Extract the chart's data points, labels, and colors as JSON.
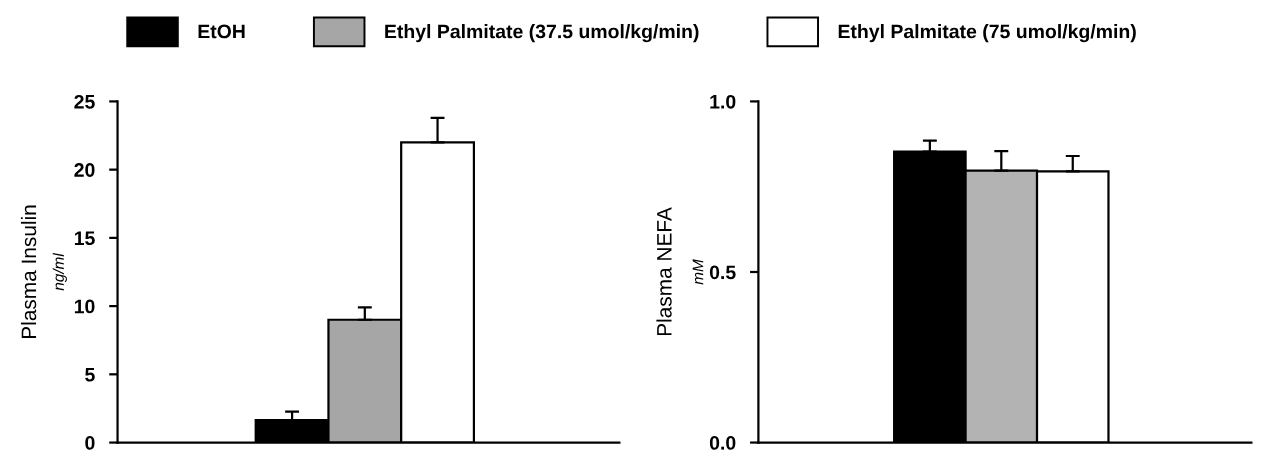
{
  "chart_data": [
    {
      "type": "bar",
      "categories": [
        null
      ],
      "ylabel": "Plasma Insulin\nng/ml",
      "ylim": [
        0,
        25
      ],
      "yticks": [
        0,
        5,
        10,
        15,
        20,
        25
      ],
      "legend": "top",
      "grid": false,
      "series": [
        {
          "name": "EtOH",
          "color": "#000000",
          "values": [
            1.64
          ],
          "errors": [
            [
              1.64,
              2.27
            ]
          ]
        },
        {
          "name": "Ethyl Palmitate (37.5 umol/kg/min)",
          "color": "#a6a6a6",
          "values": [
            9.0
          ],
          "errors": [
            [
              9.0,
              9.9
            ]
          ]
        },
        {
          "name": "Ethyl Palmitate (75 umol/kg/min)",
          "color": "#ffffff",
          "values": [
            22.0
          ],
          "errors": [
            [
              22.0,
              23.8
            ]
          ]
        }
      ]
    },
    {
      "type": "bar",
      "categories": [
        null
      ],
      "ylabel": "Plasma NEFA\nmM",
      "ylim": [
        0,
        1.0
      ],
      "yticks": [
        {
          "value": 0,
          "label": "0.0"
        },
        0.5,
        {
          "value": 1.0,
          "label": "1.0"
        }
      ],
      "grid": false,
      "series": [
        {
          "color": "#000000",
          "values": [
            0.853
          ],
          "errors": [
            [
              0.853,
              0.885
            ]
          ]
        },
        {
          "color": "#b3b3b3",
          "values": [
            0.797
          ],
          "errors": [
            [
              0.797,
              0.854
            ]
          ]
        },
        {
          "color": "#ffffff",
          "values": [
            0.795
          ],
          "errors": [
            [
              0.795,
              0.84
            ]
          ]
        }
      ]
    }
  ]
}
